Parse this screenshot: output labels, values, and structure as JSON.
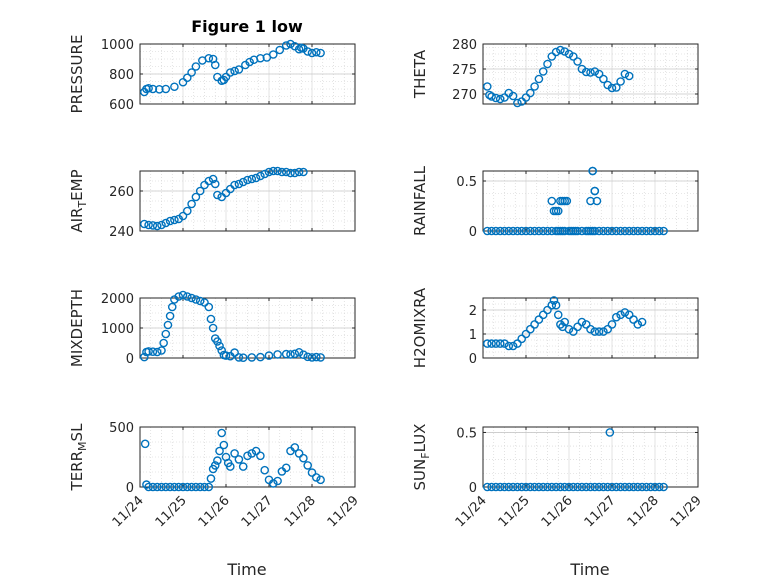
{
  "figure_title": "Figure 1 low",
  "xlabel": "Time",
  "marker_color": "#0072BD",
  "x_ticks": [
    "11/24",
    "11/25",
    "11/26",
    "11/27",
    "11/28",
    "11/29"
  ],
  "chart_data": [
    {
      "type": "scatter",
      "ylabel": "PRESSURE",
      "ylim": [
        600,
        1000
      ],
      "yticks": [
        "600",
        "800",
        "1000"
      ],
      "xlim": [
        0,
        5
      ],
      "grid": true,
      "x": [
        0.1,
        0.15,
        0.2,
        0.3,
        0.45,
        0.6,
        0.8,
        1.0,
        1.1,
        1.2,
        1.3,
        1.45,
        1.6,
        1.7,
        1.75,
        1.8,
        1.9,
        1.95,
        2.0,
        2.1,
        2.2,
        2.3,
        2.45,
        2.55,
        2.65,
        2.8,
        2.95,
        3.1,
        3.25,
        3.4,
        3.5,
        3.6,
        3.7,
        3.75,
        3.8,
        3.9,
        4.0,
        4.1,
        4.2
      ],
      "y": [
        680,
        700,
        705,
        700,
        698,
        700,
        715,
        745,
        775,
        810,
        850,
        890,
        905,
        900,
        860,
        780,
        755,
        760,
        780,
        810,
        820,
        830,
        860,
        880,
        895,
        905,
        910,
        930,
        960,
        990,
        1000,
        985,
        965,
        975,
        970,
        950,
        940,
        945,
        940
      ]
    },
    {
      "type": "scatter",
      "ylabel": "THETA",
      "ylim": [
        268,
        280
      ],
      "yticks": [
        "270",
        "275",
        "280"
      ],
      "xlim": [
        0,
        5
      ],
      "grid": true,
      "x": [
        0.1,
        0.15,
        0.2,
        0.3,
        0.4,
        0.5,
        0.6,
        0.7,
        0.8,
        0.9,
        1.0,
        1.1,
        1.2,
        1.3,
        1.4,
        1.5,
        1.6,
        1.7,
        1.8,
        1.9,
        2.0,
        2.1,
        2.2,
        2.3,
        2.4,
        2.5,
        2.6,
        2.7,
        2.8,
        2.9,
        3.0,
        3.1,
        3.2,
        3.3,
        3.4,
        3.5,
        3.6,
        3.7,
        3.8,
        3.9,
        4.0,
        4.1,
        4.2
      ],
      "y": [
        271.5,
        269.8,
        269.5,
        269.2,
        269.0,
        269.3,
        270.2,
        269.6,
        268.2,
        268.5,
        269.3,
        270.2,
        271.5,
        273.0,
        274.5,
        276.0,
        277.5,
        278.4,
        278.8,
        278.5,
        278.0,
        277.5,
        276.5,
        275.0,
        274.4,
        274.3,
        274.5,
        274.0,
        273.0,
        271.8,
        271.2,
        271.3,
        272.5,
        274.0,
        273.6,
        null,
        null,
        null,
        null,
        null,
        null,
        null,
        null
      ]
    },
    {
      "type": "scatter",
      "ylabel": "AIR_TEMP",
      "ylim": [
        240,
        270
      ],
      "yticks": [
        "240",
        "260"
      ],
      "xlim": [
        0,
        5
      ],
      "grid": true,
      "x": [
        0.1,
        0.2,
        0.3,
        0.4,
        0.5,
        0.6,
        0.7,
        0.8,
        0.9,
        1.0,
        1.1,
        1.2,
        1.3,
        1.4,
        1.5,
        1.6,
        1.7,
        1.75,
        1.8,
        1.9,
        2.0,
        2.1,
        2.2,
        2.3,
        2.4,
        2.5,
        2.6,
        2.7,
        2.8,
        2.9,
        3.0,
        3.1,
        3.2,
        3.3,
        3.4,
        3.5,
        3.6,
        3.7,
        3.8,
        3.9,
        4.0,
        4.1,
        4.2
      ],
      "y": [
        243.5,
        243.0,
        242.8,
        242.5,
        243.0,
        244.0,
        245.0,
        245.5,
        246.0,
        247.5,
        250.0,
        253.5,
        257.0,
        260.0,
        263.0,
        265.0,
        266.0,
        263.5,
        258.0,
        257.0,
        259.0,
        261.0,
        263.0,
        263.5,
        264.5,
        265.5,
        266.0,
        266.5,
        267.5,
        268.5,
        269.5,
        270.0,
        270.0,
        269.5,
        269.5,
        269.0,
        269.0,
        269.5,
        269.5,
        null,
        null,
        null,
        null
      ]
    },
    {
      "type": "scatter",
      "ylabel": "RAINFALL",
      "ylim": [
        0,
        0.6
      ],
      "yticks": [
        "0",
        "0.5"
      ],
      "xlim": [
        0,
        5
      ],
      "grid": true,
      "x": [
        0.1,
        0.2,
        0.3,
        0.4,
        0.5,
        0.6,
        0.7,
        0.8,
        0.9,
        1.0,
        1.1,
        1.2,
        1.3,
        1.4,
        1.5,
        1.6,
        1.7,
        1.75,
        1.8,
        1.85,
        1.9,
        2.0,
        2.05,
        2.1,
        2.15,
        2.2,
        2.3,
        2.4,
        2.45,
        2.5,
        2.55,
        2.6,
        2.7,
        2.8,
        2.9,
        3.0,
        3.1,
        3.2,
        3.3,
        3.4,
        3.5,
        3.6,
        3.7,
        3.8,
        3.9,
        4.0,
        4.1,
        4.2,
        1.6,
        1.65,
        1.7,
        1.75,
        1.8,
        1.85,
        1.9,
        1.95,
        2.5,
        2.55,
        2.6,
        2.65,
        2.55,
        2.6
      ],
      "y": [
        0,
        0,
        0,
        0,
        0,
        0,
        0,
        0,
        0,
        0,
        0,
        0,
        0,
        0,
        0,
        0,
        0,
        0,
        0,
        0,
        0,
        0,
        0,
        0,
        0,
        0,
        0,
        0,
        0,
        0,
        0,
        0,
        0,
        0,
        0,
        0,
        0,
        0,
        0,
        0,
        0,
        0,
        0,
        0,
        0,
        0,
        0,
        0,
        0.3,
        0.2,
        0.2,
        0.2,
        0.3,
        0.3,
        0.3,
        0.3,
        0.3,
        0.6,
        0.4,
        0.3,
        0.6,
        0.4
      ]
    },
    {
      "type": "scatter",
      "ylabel": "MIXDEPTH",
      "ylim": [
        0,
        2000
      ],
      "yticks": [
        "0",
        "1000",
        "2000"
      ],
      "xlim": [
        0,
        5
      ],
      "grid": true,
      "x": [
        0.1,
        0.15,
        0.2,
        0.3,
        0.4,
        0.5,
        0.55,
        0.6,
        0.65,
        0.7,
        0.75,
        0.8,
        0.9,
        1.0,
        1.1,
        1.2,
        1.3,
        1.4,
        1.5,
        1.6,
        1.65,
        1.7,
        1.75,
        1.8,
        1.85,
        1.9,
        1.95,
        2.0,
        2.1,
        2.2,
        2.3,
        2.4,
        2.6,
        2.8,
        3.0,
        3.2,
        3.4,
        3.5,
        3.6,
        3.7,
        3.8,
        3.9,
        4.0,
        4.1,
        4.2
      ],
      "y": [
        30,
        200,
        220,
        210,
        200,
        250,
        500,
        800,
        1100,
        1400,
        1700,
        1950,
        2050,
        2100,
        2050,
        2000,
        1950,
        1900,
        1850,
        1700,
        1300,
        1000,
        650,
        550,
        400,
        250,
        100,
        80,
        60,
        180,
        20,
        10,
        20,
        30,
        80,
        120,
        130,
        120,
        140,
        190,
        110,
        40,
        20,
        30,
        20
      ]
    },
    {
      "type": "scatter",
      "ylabel": "H2OMIXRA",
      "ylim": [
        0,
        2.5
      ],
      "yticks": [
        "0",
        "1",
        "2"
      ],
      "xlim": [
        0,
        5
      ],
      "grid": true,
      "x": [
        0.1,
        0.2,
        0.3,
        0.4,
        0.5,
        0.6,
        0.7,
        0.8,
        0.9,
        1.0,
        1.1,
        1.2,
        1.3,
        1.4,
        1.5,
        1.6,
        1.65,
        1.7,
        1.75,
        1.8,
        1.85,
        1.9,
        2.0,
        2.1,
        2.2,
        2.3,
        2.4,
        2.5,
        2.6,
        2.7,
        2.8,
        2.9,
        3.0,
        3.1,
        3.2,
        3.3,
        3.4,
        3.5,
        3.6,
        3.7,
        3.8,
        3.9,
        4.0,
        4.1,
        4.2
      ],
      "y": [
        0.6,
        0.6,
        0.6,
        0.6,
        0.6,
        0.5,
        0.5,
        0.6,
        0.8,
        1.0,
        1.2,
        1.4,
        1.6,
        1.8,
        2.0,
        2.2,
        2.4,
        2.2,
        1.8,
        1.4,
        1.3,
        1.5,
        1.2,
        1.1,
        1.3,
        1.5,
        1.4,
        1.2,
        1.1,
        1.1,
        1.1,
        1.2,
        1.4,
        1.7,
        1.8,
        1.9,
        1.8,
        1.6,
        1.4,
        1.5,
        null,
        null,
        null,
        null,
        null
      ]
    },
    {
      "type": "scatter",
      "ylabel": "TERR_MSL",
      "ylim": [
        0,
        500
      ],
      "yticks": [
        "0",
        "500"
      ],
      "xlim": [
        0,
        5
      ],
      "grid": true,
      "x": [
        0.12,
        0.15,
        0.2,
        0.3,
        0.4,
        0.5,
        0.6,
        0.7,
        0.8,
        0.9,
        1.0,
        1.1,
        1.2,
        1.3,
        1.4,
        1.5,
        1.6,
        1.65,
        1.7,
        1.75,
        1.8,
        1.85,
        1.9,
        1.95,
        2.0,
        2.05,
        2.1,
        2.2,
        2.3,
        2.4,
        2.5,
        2.6,
        2.7,
        2.8,
        2.9,
        3.0,
        3.1,
        3.2,
        3.3,
        3.4,
        3.5,
        3.6,
        3.7,
        3.8,
        3.9,
        4.0,
        4.1,
        4.2
      ],
      "y": [
        360,
        20,
        0,
        0,
        0,
        0,
        0,
        0,
        0,
        0,
        0,
        0,
        0,
        0,
        0,
        0,
        0,
        70,
        150,
        180,
        220,
        300,
        450,
        350,
        250,
        200,
        170,
        280,
        230,
        170,
        260,
        280,
        300,
        260,
        140,
        60,
        30,
        50,
        130,
        160,
        300,
        330,
        280,
        240,
        180,
        120,
        80,
        60
      ]
    },
    {
      "type": "scatter",
      "ylabel": "SUN_FLUX",
      "ylim": [
        0,
        0.55
      ],
      "yticks": [
        "0",
        "0.5"
      ],
      "xlim": [
        0,
        5
      ],
      "grid": true,
      "x": [
        0.1,
        0.2,
        0.3,
        0.4,
        0.5,
        0.6,
        0.7,
        0.8,
        0.9,
        1.0,
        1.1,
        1.2,
        1.3,
        1.4,
        1.5,
        1.6,
        1.7,
        1.8,
        1.9,
        2.0,
        2.1,
        2.2,
        2.3,
        2.4,
        2.5,
        2.6,
        2.7,
        2.8,
        2.9,
        3.0,
        3.1,
        3.2,
        3.3,
        3.4,
        3.5,
        3.6,
        3.7,
        3.8,
        3.9,
        4.0,
        4.1,
        4.2,
        2.95
      ],
      "y": [
        0,
        0,
        0,
        0,
        0,
        0,
        0,
        0,
        0,
        0,
        0,
        0,
        0,
        0,
        0,
        0,
        0,
        0,
        0,
        0,
        0,
        0,
        0,
        0,
        0,
        0,
        0,
        0,
        0,
        0,
        0,
        0,
        0,
        0,
        0,
        0,
        0,
        0,
        0,
        0,
        0,
        0,
        0.5
      ]
    }
  ]
}
